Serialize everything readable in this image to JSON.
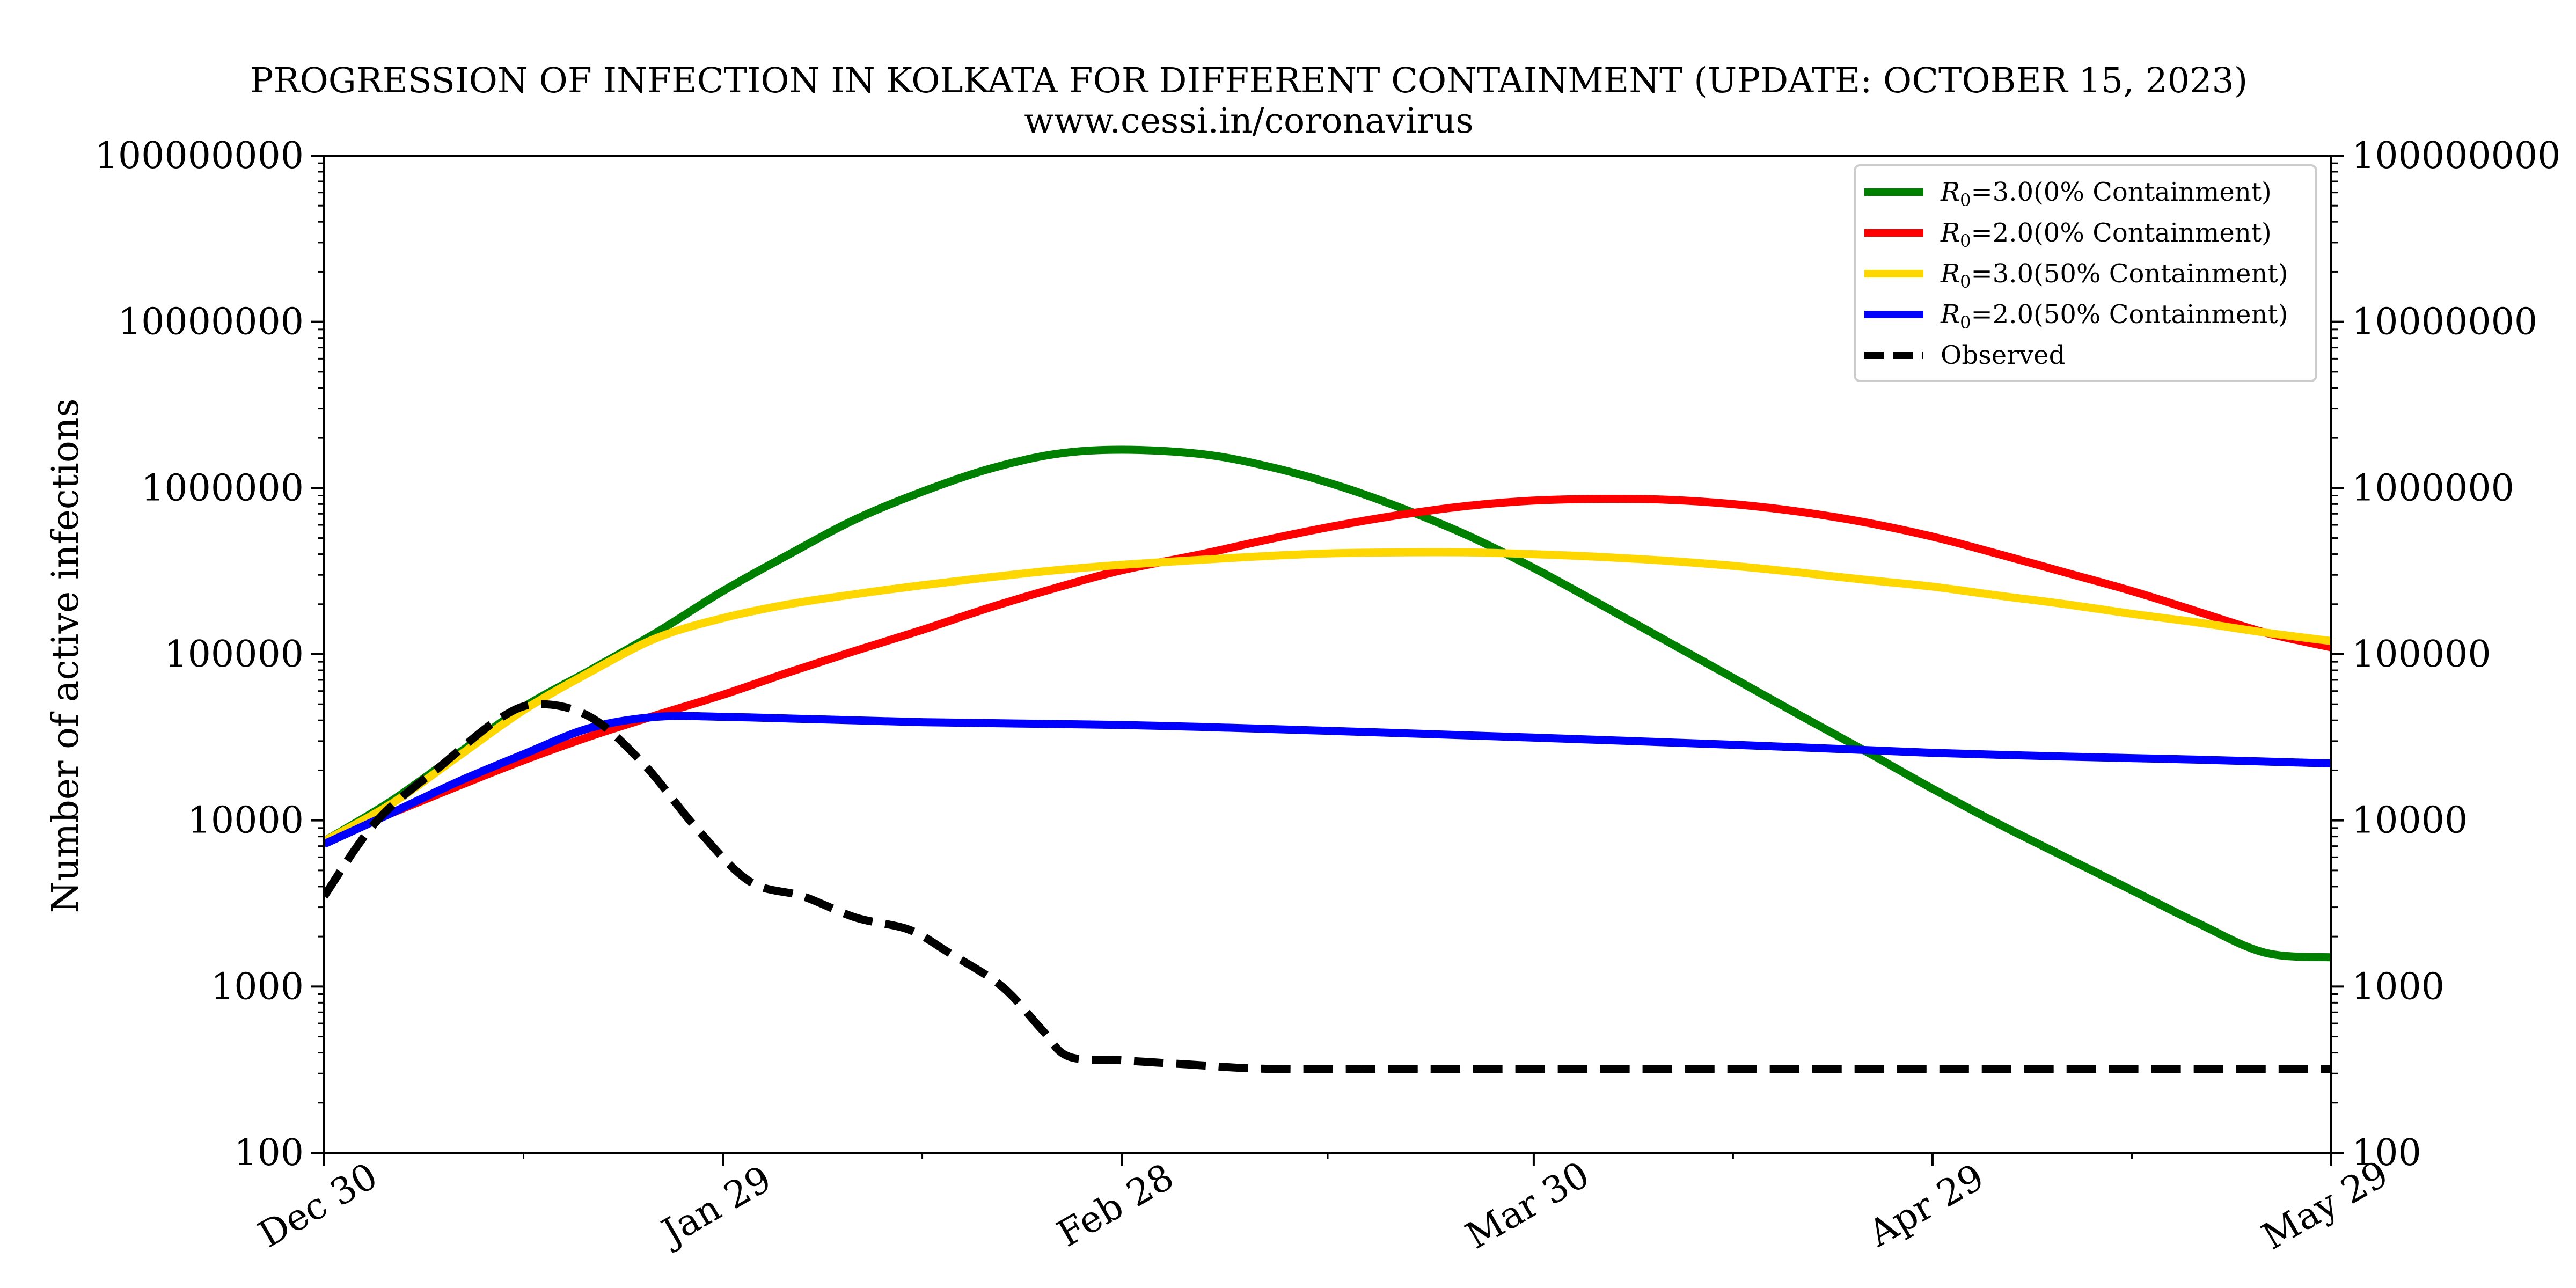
{
  "chart_data": {
    "type": "line",
    "title": "PROGRESSION OF INFECTION IN KOLKATA FOR DIFFERENT CONTAINMENT (UPDATE: OCTOBER 15, 2023)",
    "subtitle": "www.cessi.in/coronavirus",
    "ylabel": "Number of active infections",
    "xlabel": "",
    "y_scale": "log",
    "ylim": [
      100,
      100000000
    ],
    "xlim": [
      "Dec 30",
      "May 29"
    ],
    "x_ticks": [
      "Dec 30",
      "Jan 29",
      "Feb 28",
      "Mar 30",
      "Apr 29",
      "May 29"
    ],
    "y_ticks": [
      "100",
      "1000",
      "10000",
      "100000",
      "1000000",
      "10000000",
      "100000000"
    ],
    "grid": false,
    "legend_position": "top-right",
    "x": [
      "Dec 30",
      "Jan 4",
      "Jan 9",
      "Jan 14",
      "Jan 19",
      "Jan 24",
      "Jan 29",
      "Feb 3",
      "Feb 8",
      "Feb 13",
      "Feb 18",
      "Feb 23",
      "Feb 28",
      "Mar 5",
      "Mar 10",
      "Mar 15",
      "Mar 20",
      "Mar 25",
      "Mar 30",
      "Apr 4",
      "Apr 9",
      "Apr 14",
      "Apr 19",
      "Apr 24",
      "Apr 29",
      "May 4",
      "May 9",
      "May 14",
      "May 19",
      "May 24",
      "May 29"
    ],
    "series": [
      {
        "label_r": "R",
        "label_sub": "0",
        "label_rest": "=3.0(0% Containment)",
        "color": "#008000",
        "dash": "solid",
        "values": [
          7500,
          13000,
          25000,
          48000,
          80000,
          135000,
          240000,
          400000,
          650000,
          950000,
          1300000,
          1600000,
          1700000,
          1600000,
          1350000,
          1050000,
          760000,
          520000,
          330000,
          200000,
          120000,
          72000,
          43000,
          26000,
          15500,
          9500,
          6000,
          3800,
          2400,
          1600,
          1500
        ]
      },
      {
        "label_r": "R",
        "label_sub": "0",
        "label_rest": "=2.0(0% Containment)",
        "color": "#ff0000",
        "dash": "solid",
        "values": [
          7500,
          11000,
          16000,
          23000,
          32000,
          43000,
          57000,
          78000,
          105000,
          140000,
          190000,
          250000,
          320000,
          400000,
          490000,
          590000,
          690000,
          780000,
          840000,
          860000,
          850000,
          800000,
          720000,
          620000,
          510000,
          400000,
          310000,
          240000,
          180000,
          135000,
          110000
        ]
      },
      {
        "label_r": "R",
        "label_sub": "0",
        "label_rest": "=3.0(50% Containment)",
        "color": "#ffd700",
        "dash": "solid",
        "values": [
          7500,
          12500,
          24000,
          46000,
          78000,
          125000,
          165000,
          200000,
          230000,
          260000,
          290000,
          320000,
          345000,
          370000,
          390000,
          405000,
          410000,
          410000,
          400000,
          385000,
          365000,
          340000,
          310000,
          280000,
          255000,
          225000,
          200000,
          175000,
          155000,
          135000,
          120000
        ]
      },
      {
        "label_r": "R",
        "label_sub": "0",
        "label_rest": "=2.0(50% Containment)",
        "color": "#0000ff",
        "dash": "solid",
        "values": [
          7200,
          11000,
          17000,
          25000,
          36000,
          42000,
          42000,
          41000,
          40000,
          39000,
          38500,
          38000,
          37500,
          36500,
          35500,
          34500,
          33500,
          32500,
          31500,
          30500,
          29500,
          28500,
          27500,
          26500,
          25500,
          24800,
          24200,
          23700,
          23200,
          22600,
          22000
        ]
      }
    ],
    "observed": {
      "label": "Observed",
      "color": "#000000",
      "dash": "dashed",
      "x": [
        "Dec 30",
        "Jan 3",
        "Jan 8",
        "Jan 12",
        "Jan 15",
        "Jan 19",
        "Jan 23",
        "Jan 27",
        "Jan 31",
        "Feb 4",
        "Feb 8",
        "Feb 12",
        "Feb 15",
        "Feb 19",
        "Feb 22",
        "Feb 24",
        "Feb 28",
        "Mar 4",
        "Mar 10",
        "Mar 20",
        "Mar 30",
        "Apr 15",
        "May 1",
        "May 15",
        "May 29"
      ],
      "values": [
        3500,
        10000,
        22000,
        40000,
        50000,
        42000,
        22000,
        9000,
        4300,
        3500,
        2600,
        2200,
        1600,
        1000,
        550,
        380,
        360,
        340,
        320,
        320,
        320,
        320,
        320,
        320,
        320
      ]
    }
  }
}
